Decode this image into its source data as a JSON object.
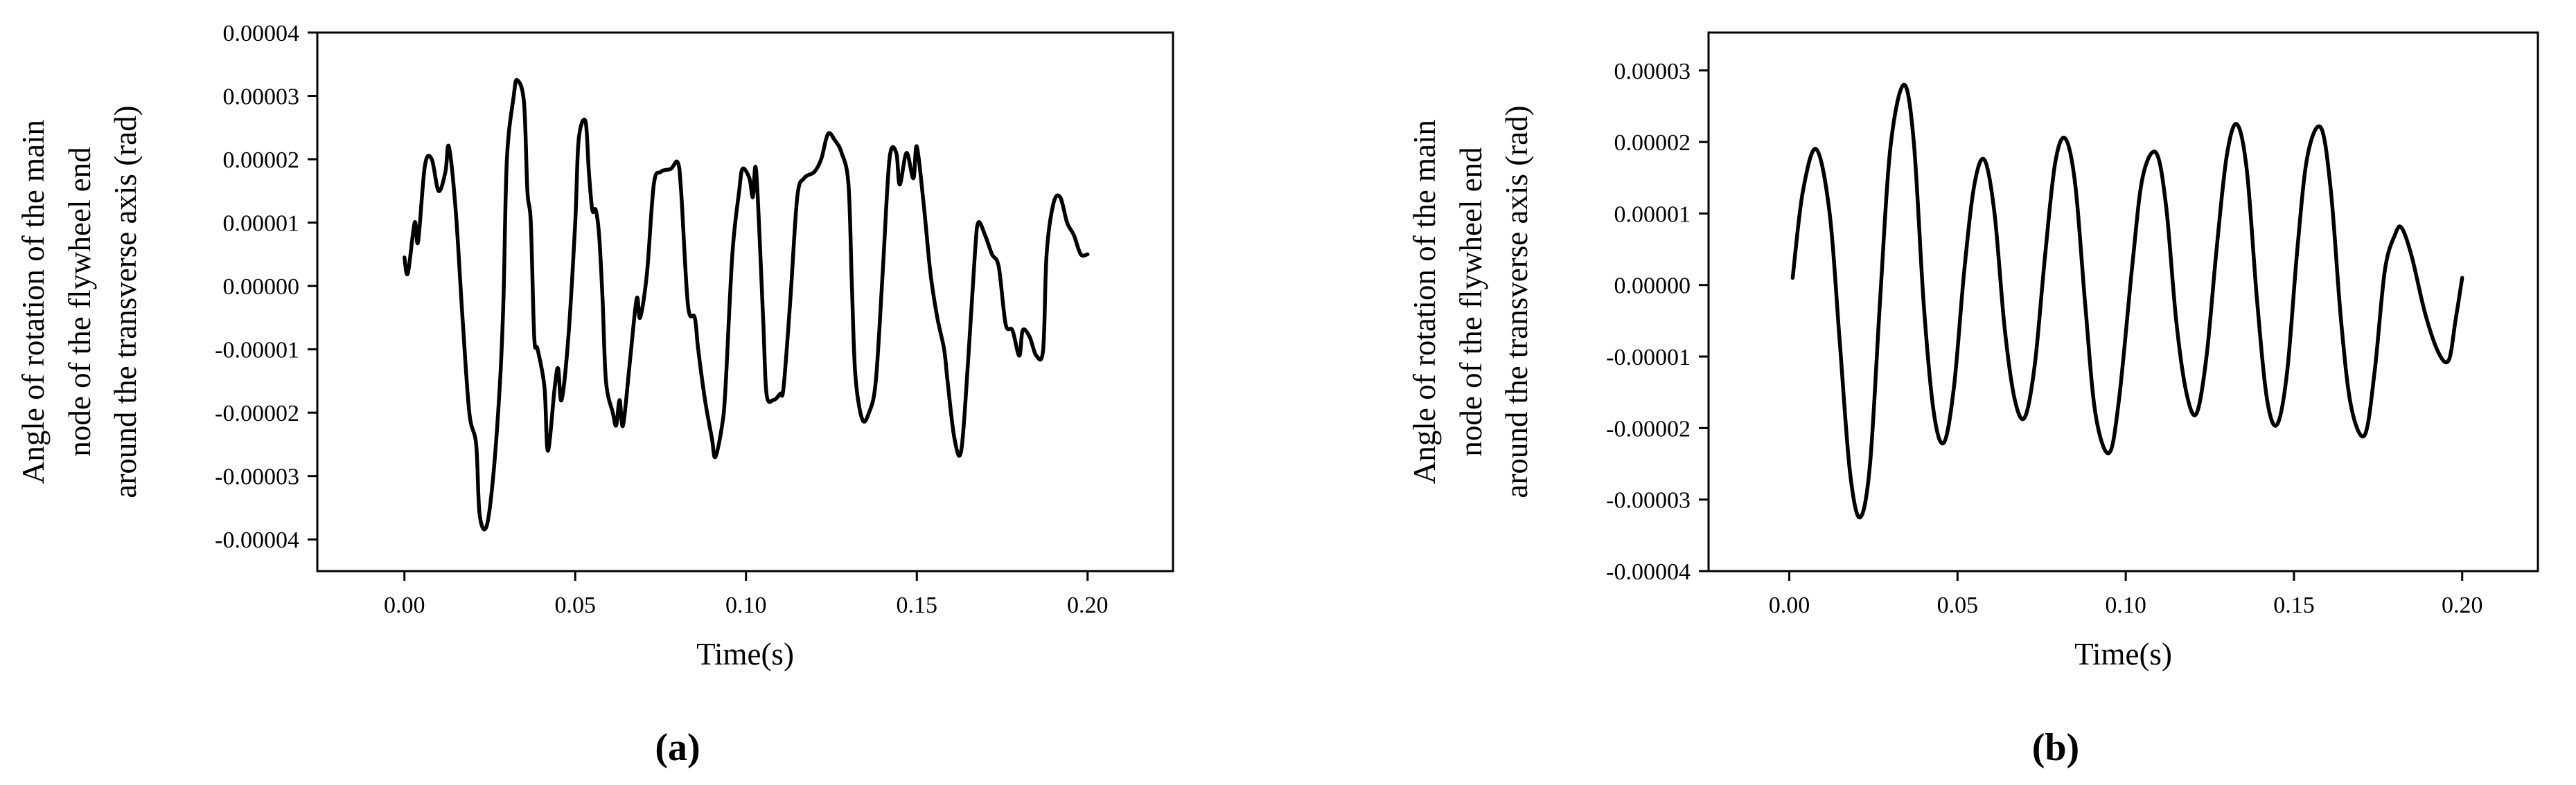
{
  "chart_data": [
    {
      "type": "line",
      "caption": "(a)",
      "xlabel": "Time(s)",
      "ylabel": [
        "Angle of rotation of the main",
        "node of the flywheel end",
        "around the transverse axis (rad)"
      ],
      "color": "#000000",
      "xlim": [
        -0.0255,
        0.225
      ],
      "ylim": [
        -4.5e-05,
        4e-05
      ],
      "xticks": [
        {
          "value": 0,
          "label": "0.00"
        },
        0.05,
        {
          "value": 0.1,
          "label": "0.10"
        },
        0.15,
        {
          "value": 0.2,
          "label": "0.20"
        }
      ],
      "yticks": [
        4e-05,
        3e-05,
        2e-05,
        1e-05,
        {
          "value": 0,
          "label": "0.00000"
        },
        -1e-05,
        -2e-05,
        -3e-05,
        -4e-05
      ],
      "x": [
        0.0,
        0.001,
        0.003,
        0.004,
        0.006,
        0.008,
        0.01,
        0.012,
        0.013,
        0.015,
        0.017,
        0.019,
        0.021,
        0.022,
        0.024,
        0.026,
        0.028,
        0.029,
        0.03,
        0.032,
        0.033,
        0.035,
        0.036,
        0.037,
        0.038,
        0.039,
        0.041,
        0.042,
        0.044,
        0.045,
        0.046,
        0.048,
        0.05,
        0.051,
        0.053,
        0.054,
        0.055,
        0.056,
        0.057,
        0.058,
        0.059,
        0.061,
        0.062,
        0.063,
        0.064,
        0.066,
        0.068,
        0.069,
        0.071,
        0.073,
        0.075,
        0.078,
        0.08,
        0.081,
        0.083,
        0.085,
        0.086,
        0.088,
        0.09,
        0.091,
        0.093,
        0.094,
        0.096,
        0.098,
        0.099,
        0.101,
        0.102,
        0.103,
        0.105,
        0.106,
        0.108,
        0.11,
        0.111,
        0.113,
        0.115,
        0.117,
        0.12,
        0.122,
        0.124,
        0.126,
        0.128,
        0.13,
        0.131,
        0.132,
        0.134,
        0.136,
        0.138,
        0.14,
        0.142,
        0.144,
        0.145,
        0.147,
        0.149,
        0.15,
        0.152,
        0.154,
        0.156,
        0.158,
        0.159,
        0.161,
        0.163,
        0.165,
        0.167,
        0.168,
        0.17,
        0.172,
        0.174,
        0.176,
        0.178,
        0.18,
        0.181,
        0.183,
        0.185,
        0.187,
        0.188,
        0.19,
        0.192,
        0.194,
        0.196,
        0.198,
        0.2
      ],
      "values": [
        4.5e-06,
        2e-06,
        1e-05,
        7e-06,
        1.9e-05,
        2e-05,
        1.5e-05,
        1.8e-05,
        2.2e-05,
        1.2e-05,
        -5e-06,
        -2e-05,
        -2.5e-05,
        -3.6e-05,
        -3.8e-05,
        -3e-05,
        -1.5e-05,
        -2e-06,
        2e-05,
        3e-05,
        3.25e-05,
        2.9e-05,
        1.5e-05,
        1e-05,
        -8e-06,
        -1e-05,
        -1.6e-05,
        -2.6e-05,
        -1.6e-05,
        -1.3e-05,
        -1.8e-05,
        -8e-06,
        1e-05,
        2.3e-05,
        2.6e-05,
        1.8e-05,
        1.2e-05,
        1.2e-05,
        8e-06,
        -2e-06,
        -1.5e-05,
        -2e-05,
        -2.2e-05,
        -1.8e-05,
        -2.2e-05,
        -1.2e-05,
        -2e-06,
        -5e-06,
        2e-06,
        1.6e-05,
        1.8e-05,
        1.85e-05,
        1.95e-05,
        1.5e-05,
        -3e-06,
        -5e-06,
        -1e-05,
        -1.8e-05,
        -2.4e-05,
        -2.7e-05,
        -2.2e-05,
        -1.6e-05,
        5e-06,
        1.5e-05,
        1.85e-05,
        1.7e-05,
        1.4e-05,
        1.8e-05,
        -5e-06,
        -1.7e-05,
        -1.8e-05,
        -1.7e-05,
        -1.6e-05,
        -2e-06,
        1.4e-05,
        1.7e-05,
        1.8e-05,
        2e-05,
        2.4e-05,
        2.3e-05,
        2.1e-05,
        1.6e-05,
        0,
        -1.4e-05,
        -2.1e-05,
        -2e-05,
        -1.5e-05,
        2e-06,
        2e-05,
        2.1e-05,
        1.6e-05,
        2.1e-05,
        1.7e-05,
        2.2e-05,
        1.3e-05,
        2e-06,
        -5e-06,
        -1e-05,
        -1.5e-05,
        -2.4e-05,
        -2.6e-05,
        -1.2e-05,
        5e-06,
        1e-05,
        8e-06,
        5e-06,
        3e-06,
        -6e-06,
        -7e-06,
        -1.1e-05,
        -7e-06,
        -8e-06,
        -1.1e-05,
        -1e-05,
        5e-06,
        1.3e-05,
        1.4e-05,
        1e-05,
        8e-06,
        5e-06,
        5e-06
      ]
    },
    {
      "type": "line",
      "caption": "(b)",
      "xlabel": "Time(s)",
      "ylabel": [
        "Angle of rotation of the main",
        "node of the flywheel end",
        "around the transverse axis (rad)"
      ],
      "color": "#000000",
      "xlim": [
        -0.024,
        0.2225
      ],
      "ylim": [
        -4e-05,
        3.53e-05
      ],
      "xticks": [
        {
          "value": 0,
          "label": "0.00"
        },
        0.05,
        {
          "value": 0.1,
          "label": "0.10"
        },
        0.15,
        {
          "value": 0.2,
          "label": "0.20"
        }
      ],
      "yticks": [
        3e-05,
        2e-05,
        1e-05,
        {
          "value": 0,
          "label": "0.00000"
        },
        -1e-05,
        -2e-05,
        -3e-05,
        -4e-05
      ],
      "x": [
        0.001,
        0.004,
        0.008,
        0.012,
        0.015,
        0.018,
        0.021,
        0.024,
        0.027,
        0.03,
        0.034,
        0.037,
        0.04,
        0.043,
        0.046,
        0.049,
        0.052,
        0.055,
        0.058,
        0.061,
        0.064,
        0.067,
        0.07,
        0.073,
        0.076,
        0.079,
        0.082,
        0.085,
        0.088,
        0.091,
        0.095,
        0.098,
        0.102,
        0.105,
        0.109,
        0.112,
        0.115,
        0.118,
        0.121,
        0.124,
        0.127,
        0.13,
        0.133,
        0.136,
        0.139,
        0.142,
        0.145,
        0.148,
        0.151,
        0.154,
        0.158,
        0.161,
        0.164,
        0.167,
        0.171,
        0.174,
        0.177,
        0.18,
        0.182,
        0.185,
        0.189,
        0.193,
        0.196,
        0.198,
        0.2
      ],
      "values": [
        1e-06,
        1.3e-05,
        1.9e-05,
        1e-05,
        -8e-06,
        -2.6e-05,
        -3.25e-05,
        -2.5e-05,
        -2e-06,
        1.9e-05,
        2.8e-05,
        2e-05,
        -3e-06,
        -1.8e-05,
        -2.2e-05,
        -1.4e-05,
        2e-06,
        1.4e-05,
        1.75e-05,
        1e-05,
        -6e-06,
        -1.6e-05,
        -1.85e-05,
        -1.1e-05,
        4e-06,
        1.7e-05,
        2.05e-05,
        1.4e-05,
        -3e-06,
        -1.8e-05,
        -2.35e-05,
        -1.6e-05,
        3e-06,
        1.5e-05,
        1.85e-05,
        1.1e-05,
        -5e-06,
        -1.5e-05,
        -1.8e-05,
        -1e-05,
        5e-06,
        1.8e-05,
        2.25e-05,
        1.6e-05,
        -2e-06,
        -1.6e-05,
        -1.95e-05,
        -1.2e-05,
        5e-06,
        1.8e-05,
        2.2e-05,
        1.3e-05,
        -5e-06,
        -1.7e-05,
        -2.1e-05,
        -1.2e-05,
        2e-06,
        7e-06,
        8e-06,
        4e-06,
        -4e-06,
        -9.5e-06,
        -1.05e-05,
        -5e-06,
        1e-06
      ]
    }
  ]
}
